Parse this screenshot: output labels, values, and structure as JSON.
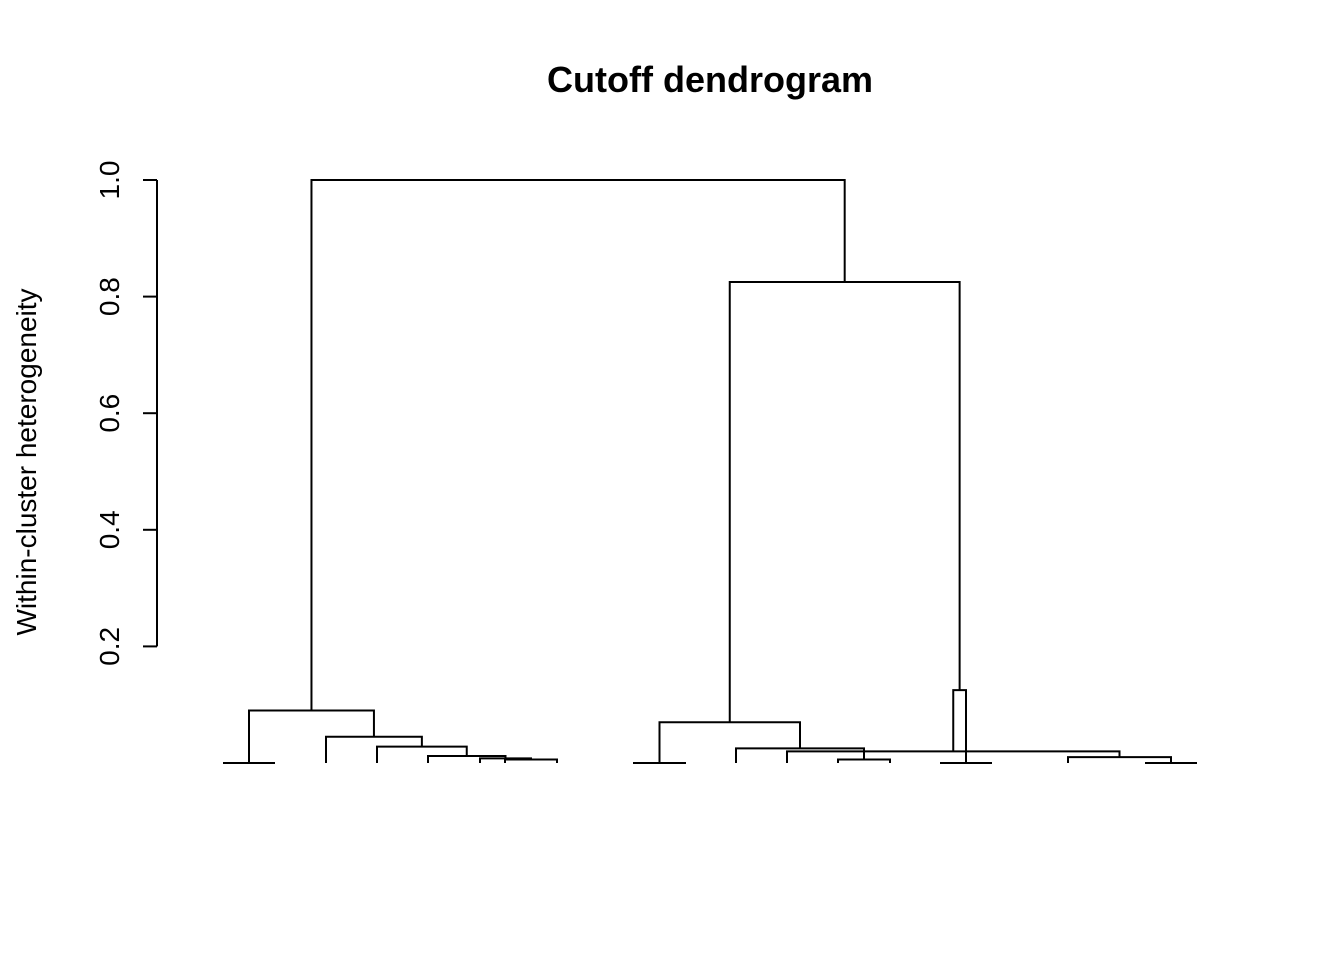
{
  "chart_data": {
    "type": "dendrogram",
    "title": "Cutoff dendrogram",
    "xlabel": "",
    "ylabel": "Within-cluster heterogeneity",
    "ylim": [
      0,
      1.0
    ],
    "yticks": [
      0.2,
      0.4,
      0.6,
      0.8,
      1.0
    ],
    "ytick_labels": [
      "0.2",
      "0.4",
      "0.6",
      "0.8",
      "1.0"
    ],
    "leaf_count": 19,
    "merges": [
      {
        "left": 1,
        "right": 2,
        "height": 0.0
      },
      {
        "left": 11,
        "right": 12,
        "height": 0.0
      },
      {
        "left": 18,
        "right": 19,
        "height": 0.0
      },
      {
        "left": 7,
        "right": 8,
        "height": 0.006
      },
      {
        "left": 15,
        "right": 16,
        "height": 0.006
      },
      {
        "left": 6,
        "right": "m4",
        "height": 0.008
      },
      {
        "left": 17,
        "right": "m3",
        "height": 0.01
      },
      {
        "left": 5,
        "right": "m6",
        "height": 0.012
      },
      {
        "left": 14,
        "right": "m7",
        "height": 0.02
      },
      {
        "left": 13,
        "right": "m5",
        "height": 0.025
      },
      {
        "left": 4,
        "right": "m8",
        "height": 0.028
      },
      {
        "left": 3,
        "right": "m11",
        "height": 0.045
      },
      {
        "left": "m2",
        "right": "m10",
        "height": 0.07
      },
      {
        "left": "m1",
        "right": "m12",
        "height": 0.09
      },
      {
        "left": 9,
        "right": 10,
        "height": 0.0
      },
      {
        "left": "m15",
        "right": "m9",
        "height": 0.125
      },
      {
        "left": "m13",
        "right": "m16",
        "height": 0.825
      },
      {
        "left": "m14",
        "right": "m17",
        "height": 1.0
      }
    ],
    "grid": false
  }
}
